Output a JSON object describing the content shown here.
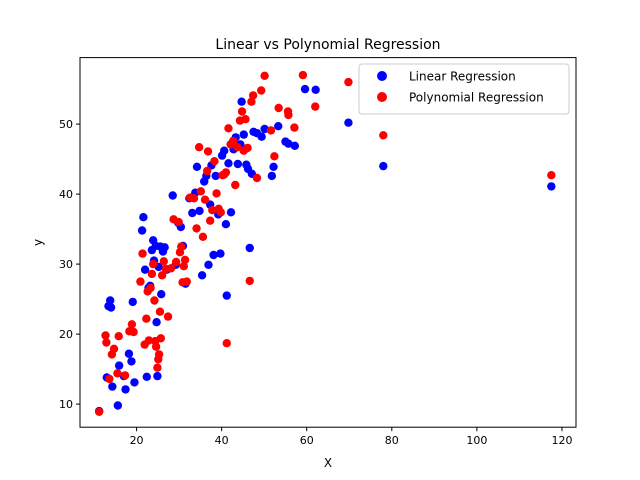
{
  "chart_data": {
    "type": "scatter",
    "title": "Linear vs Polynomial Regression",
    "xlabel": "X",
    "ylabel": "y",
    "xlim": [
      6.7,
      123.3
    ],
    "ylim": [
      6.7,
      59.5
    ],
    "xticks": [
      20,
      40,
      60,
      80,
      100,
      120
    ],
    "yticks": [
      10,
      20,
      30,
      40,
      50
    ],
    "legend_position": "top-right",
    "series": [
      {
        "name": "Linear Regression",
        "color": "#0000ff",
        "points": [
          [
            11.2,
            9.0
          ],
          [
            13.0,
            13.8
          ],
          [
            13.4,
            24.0
          ],
          [
            13.8,
            24.8
          ],
          [
            14.0,
            23.8
          ],
          [
            14.3,
            12.5
          ],
          [
            15.6,
            9.8
          ],
          [
            15.9,
            15.5
          ],
          [
            17.0,
            14.0
          ],
          [
            17.4,
            12.1
          ],
          [
            18.2,
            17.2
          ],
          [
            18.8,
            16.1
          ],
          [
            19.1,
            24.6
          ],
          [
            19.5,
            13.1
          ],
          [
            21.3,
            34.8
          ],
          [
            21.6,
            36.7
          ],
          [
            22.0,
            29.2
          ],
          [
            22.4,
            13.9
          ],
          [
            22.8,
            26.6
          ],
          [
            23.2,
            26.9
          ],
          [
            23.6,
            32.0
          ],
          [
            23.9,
            33.4
          ],
          [
            24.1,
            30.5
          ],
          [
            24.5,
            32.6
          ],
          [
            24.7,
            21.7
          ],
          [
            24.9,
            14.0
          ],
          [
            25.2,
            29.6
          ],
          [
            25.6,
            32.5
          ],
          [
            25.8,
            25.7
          ],
          [
            26.2,
            31.8
          ],
          [
            26.6,
            32.4
          ],
          [
            27.1,
            29.2
          ],
          [
            28.5,
            39.8
          ],
          [
            29.2,
            29.9
          ],
          [
            29.8,
            35.9
          ],
          [
            30.4,
            35.3
          ],
          [
            30.9,
            32.6
          ],
          [
            31.5,
            27.2
          ],
          [
            32.4,
            39.4
          ],
          [
            33.1,
            37.3
          ],
          [
            33.8,
            40.2
          ],
          [
            34.2,
            43.9
          ],
          [
            34.8,
            37.6
          ],
          [
            35.4,
            28.4
          ],
          [
            35.9,
            41.8
          ],
          [
            36.4,
            42.6
          ],
          [
            36.9,
            29.9
          ],
          [
            37.3,
            38.5
          ],
          [
            37.6,
            44.1
          ],
          [
            38.1,
            31.3
          ],
          [
            38.6,
            42.6
          ],
          [
            39.2,
            37.1
          ],
          [
            39.7,
            31.5
          ],
          [
            40.1,
            45.5
          ],
          [
            40.6,
            46.2
          ],
          [
            41.0,
            35.7
          ],
          [
            41.2,
            25.5
          ],
          [
            41.6,
            44.4
          ],
          [
            42.2,
            37.4
          ],
          [
            42.8,
            46.4
          ],
          [
            43.3,
            48.1
          ],
          [
            43.8,
            44.3
          ],
          [
            44.4,
            47.1
          ],
          [
            44.7,
            53.2
          ],
          [
            45.2,
            48.5
          ],
          [
            45.8,
            44.2
          ],
          [
            46.2,
            43.6
          ],
          [
            46.6,
            32.3
          ],
          [
            47.1,
            42.9
          ],
          [
            47.5,
            48.9
          ],
          [
            48.3,
            48.7
          ],
          [
            49.4,
            48.2
          ],
          [
            50.1,
            49.3
          ],
          [
            51.8,
            42.6
          ],
          [
            52.2,
            43.9
          ],
          [
            53.3,
            49.7
          ],
          [
            55.0,
            47.5
          ],
          [
            55.7,
            47.2
          ],
          [
            57.2,
            46.9
          ],
          [
            59.6,
            55.0
          ],
          [
            62.1,
            54.9
          ],
          [
            69.8,
            50.2
          ],
          [
            78.0,
            44.0
          ],
          [
            117.5,
            41.1
          ]
        ]
      },
      {
        "name": "Polynomial Regression",
        "color": "#ff0000",
        "points": [
          [
            11.2,
            8.9
          ],
          [
            12.7,
            19.8
          ],
          [
            12.9,
            18.8
          ],
          [
            13.6,
            13.6
          ],
          [
            14.2,
            17.1
          ],
          [
            14.7,
            17.9
          ],
          [
            15.5,
            14.4
          ],
          [
            15.8,
            19.7
          ],
          [
            17.3,
            14.1
          ],
          [
            18.3,
            20.4
          ],
          [
            18.9,
            21.4
          ],
          [
            19.3,
            20.3
          ],
          [
            20.9,
            27.5
          ],
          [
            21.4,
            31.5
          ],
          [
            21.9,
            18.5
          ],
          [
            22.3,
            22.2
          ],
          [
            22.6,
            26.1
          ],
          [
            22.9,
            19.1
          ],
          [
            23.3,
            26.6
          ],
          [
            23.6,
            28.6
          ],
          [
            23.9,
            30.0
          ],
          [
            24.2,
            24.8
          ],
          [
            24.4,
            19.0
          ],
          [
            24.6,
            18.2
          ],
          [
            24.9,
            15.2
          ],
          [
            25.1,
            16.4
          ],
          [
            25.3,
            17.1
          ],
          [
            25.5,
            23.2
          ],
          [
            25.7,
            19.4
          ],
          [
            26.0,
            28.4
          ],
          [
            26.4,
            30.4
          ],
          [
            26.9,
            29.3
          ],
          [
            27.4,
            22.5
          ],
          [
            28.1,
            29.4
          ],
          [
            28.7,
            36.4
          ],
          [
            29.3,
            30.3
          ],
          [
            29.9,
            36.0
          ],
          [
            30.2,
            31.7
          ],
          [
            30.5,
            32.5
          ],
          [
            30.8,
            27.4
          ],
          [
            31.1,
            29.7
          ],
          [
            31.4,
            30.6
          ],
          [
            31.8,
            27.5
          ],
          [
            32.6,
            39.5
          ],
          [
            33.5,
            39.4
          ],
          [
            34.1,
            35.1
          ],
          [
            34.7,
            46.7
          ],
          [
            35.1,
            40.4
          ],
          [
            35.6,
            33.9
          ],
          [
            36.1,
            39.2
          ],
          [
            36.6,
            43.3
          ],
          [
            36.8,
            46.1
          ],
          [
            37.3,
            36.2
          ],
          [
            37.8,
            37.7
          ],
          [
            38.3,
            44.7
          ],
          [
            38.8,
            40.1
          ],
          [
            39.3,
            37.9
          ],
          [
            39.8,
            37.4
          ],
          [
            40.2,
            42.7
          ],
          [
            40.6,
            42.8
          ],
          [
            41.0,
            43.1
          ],
          [
            41.2,
            18.7
          ],
          [
            41.6,
            49.4
          ],
          [
            42.1,
            47.1
          ],
          [
            42.7,
            47.6
          ],
          [
            43.2,
            41.3
          ],
          [
            43.7,
            46.7
          ],
          [
            44.3,
            50.5
          ],
          [
            44.8,
            51.8
          ],
          [
            45.2,
            46.2
          ],
          [
            45.6,
            50.7
          ],
          [
            46.1,
            46.6
          ],
          [
            46.6,
            27.6
          ],
          [
            47.0,
            53.2
          ],
          [
            47.4,
            54.1
          ],
          [
            48.3,
            42.3
          ],
          [
            49.3,
            54.8
          ],
          [
            50.1,
            56.9
          ],
          [
            51.6,
            49.1
          ],
          [
            52.4,
            45.4
          ],
          [
            53.4,
            52.3
          ],
          [
            55.6,
            51.8
          ],
          [
            55.7,
            51.3
          ],
          [
            57.1,
            49.5
          ],
          [
            59.1,
            57.0
          ],
          [
            62.0,
            52.5
          ],
          [
            69.8,
            56.0
          ],
          [
            78.0,
            48.4
          ],
          [
            117.5,
            42.7
          ]
        ]
      }
    ]
  }
}
